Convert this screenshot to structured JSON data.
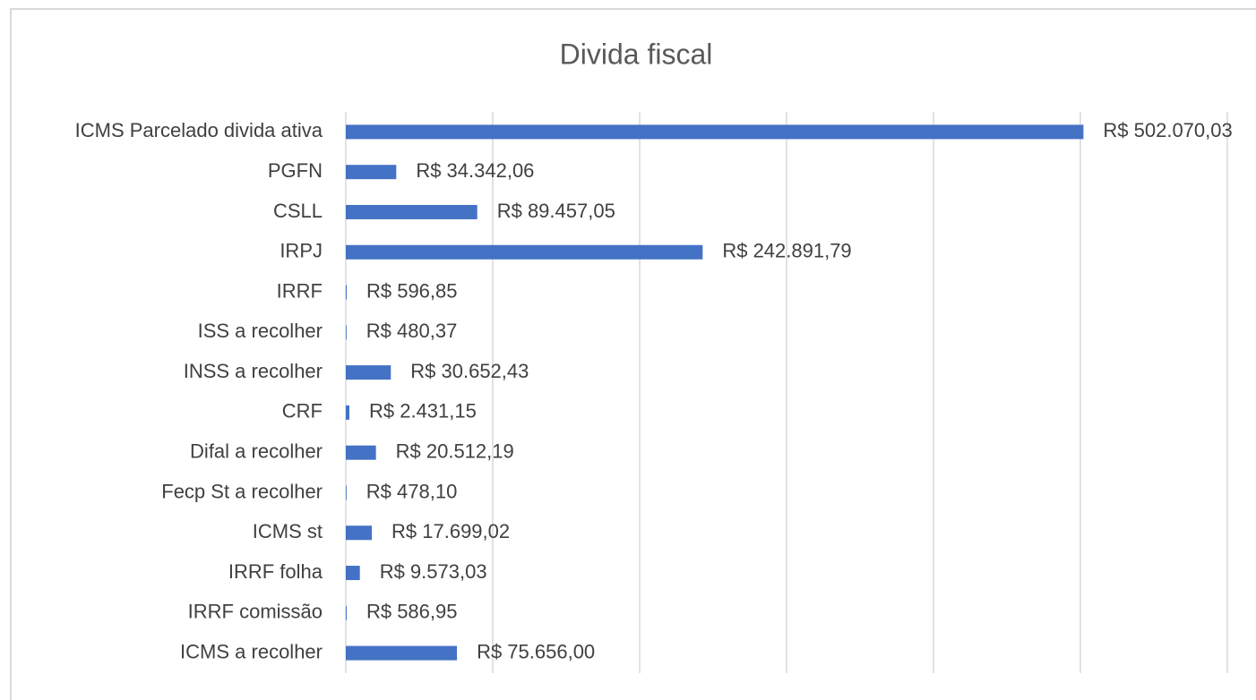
{
  "chart_data": {
    "type": "barh",
    "title": "Divida fiscal",
    "categories": [
      "ICMS Parcelado divida ativa",
      "PGFN",
      "CSLL",
      "IRPJ",
      "IRRF",
      "ISS a recolher",
      "INSS a recolher",
      "CRF",
      "Difal a recolher",
      "Fecp St a recolher",
      "ICMS st",
      "IRRF folha",
      "IRRF comissão",
      "ICMS a recolher"
    ],
    "values": [
      502070.03,
      34342.06,
      89457.05,
      242891.79,
      596.85,
      480.37,
      30652.43,
      2431.15,
      20512.19,
      478.1,
      17699.02,
      9573.03,
      586.95,
      75656.0
    ],
    "value_labels": [
      "R$ 502.070,03",
      "R$ 34.342,06",
      "R$ 89.457,05",
      "R$ 242.891,79",
      "R$ 596,85",
      "R$ 480,37",
      "R$ 30.652,43",
      "R$ 2.431,15",
      "R$ 20.512,19",
      "R$ 478,10",
      "R$ 17.699,02",
      "R$ 9.573,03",
      "R$ 586,95",
      "R$ 75.656,00"
    ],
    "color": "#4472c4",
    "xlim": [
      0,
      600000
    ],
    "xticks": [
      0,
      100000,
      200000,
      300000,
      400000,
      500000,
      600000
    ],
    "grid": true
  }
}
